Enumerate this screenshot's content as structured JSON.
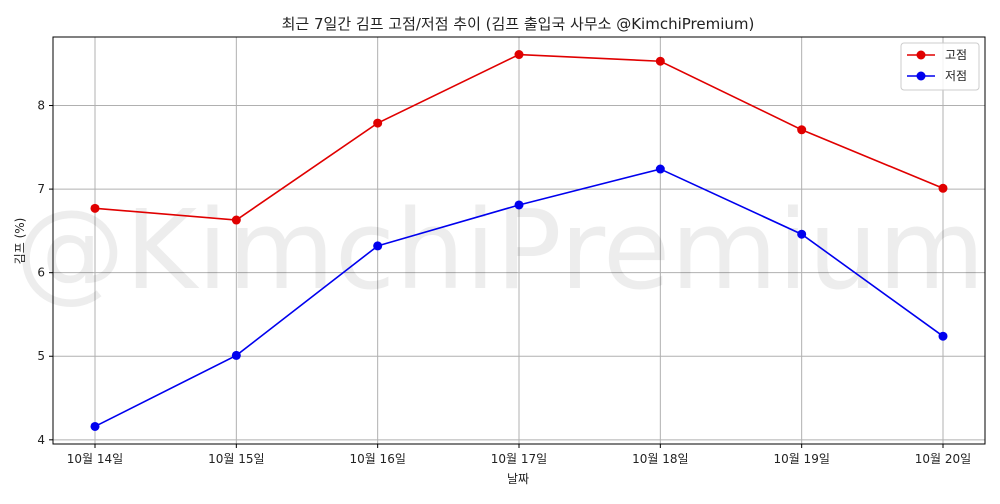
{
  "chart_data": {
    "type": "line",
    "title": "최근 7일간 김프 고점/저점 추이 (김프 출입국 사무소 @KimchiPremium)",
    "xlabel": "날짜",
    "ylabel": "김프 (%)",
    "categories": [
      "10월 14일",
      "10월 15일",
      "10월 16일",
      "10월 17일",
      "10월 18일",
      "10월 19일",
      "10월 20일"
    ],
    "series": [
      {
        "name": "고점",
        "color": "#e00000",
        "values": [
          6.77,
          6.63,
          7.79,
          8.61,
          8.53,
          7.71,
          7.01
        ]
      },
      {
        "name": "저점",
        "color": "#0000ee",
        "values": [
          4.16,
          5.01,
          6.32,
          6.81,
          7.24,
          6.46,
          5.24
        ]
      }
    ],
    "ylim": [
      3.95,
      8.82
    ],
    "yticks": [
      4,
      5,
      6,
      7,
      8
    ],
    "grid": true,
    "legend_position": "top-right",
    "watermark": "@KimchiPremium"
  }
}
